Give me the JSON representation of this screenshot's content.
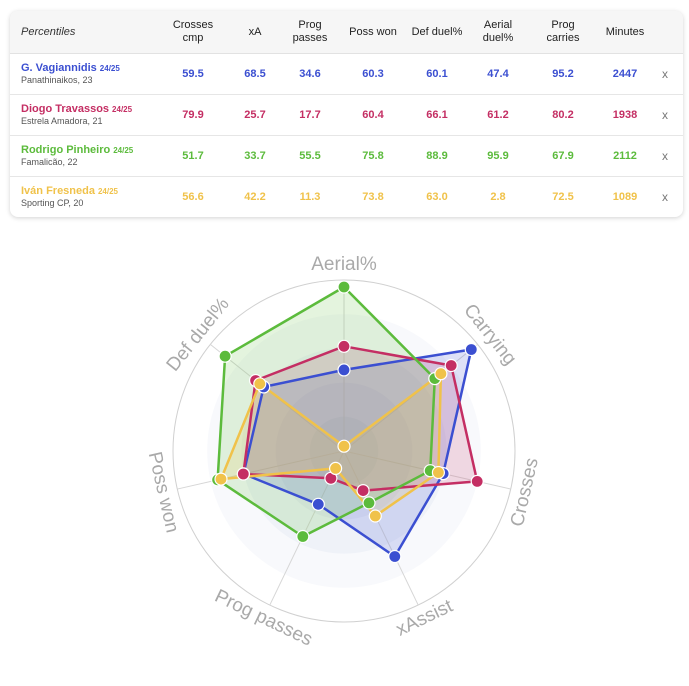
{
  "table": {
    "header_first": "Percentiles",
    "columns": [
      "Crosses\ncmp",
      "xA",
      "Prog\npasses",
      "Poss won",
      "Def duel%",
      "Aerial\nduel%",
      "Prog\ncarries",
      "Minutes"
    ],
    "remove_label": "x",
    "rows": [
      {
        "name": "G. Vagiannidis",
        "season": "24/25",
        "club": "Panathinaikos, 23",
        "color": "#3b4fd1",
        "values": [
          "59.5",
          "68.5",
          "34.6",
          "60.3",
          "60.1",
          "47.4",
          "95.2",
          "2447"
        ]
      },
      {
        "name": "Diogo Travassos",
        "season": "24/25",
        "club": "Estrela Amadora, 21",
        "color": "#c42e63",
        "values": [
          "79.9",
          "25.7",
          "17.7",
          "60.4",
          "66.1",
          "61.2",
          "80.2",
          "1938"
        ]
      },
      {
        "name": "Rodrigo Pinheiro",
        "season": "24/25",
        "club": "Famalicão, 22",
        "color": "#5cbb3c",
        "values": [
          "51.7",
          "33.7",
          "55.5",
          "75.8",
          "88.9",
          "95.9",
          "67.9",
          "2112"
        ]
      },
      {
        "name": "Iván Fresneda",
        "season": "24/25",
        "club": "Sporting CP, 20",
        "color": "#f0c24a",
        "values": [
          "56.6",
          "42.2",
          "11.3",
          "73.8",
          "63.0",
          "2.8",
          "72.5",
          "1089"
        ]
      }
    ]
  },
  "chart_data": {
    "type": "radar",
    "axes": [
      "Aerial%",
      "Carrying",
      "Crosses",
      "xAssist",
      "Prog passes",
      "Poss won",
      "Def duel%"
    ],
    "range": [
      0,
      100
    ],
    "series": [
      {
        "name": "G. Vagiannidis",
        "color": "#3b4fd1",
        "values": [
          47.4,
          95.2,
          59.5,
          68.5,
          34.6,
          60.3,
          60.1
        ]
      },
      {
        "name": "Diogo Travassos",
        "color": "#c42e63",
        "values": [
          61.2,
          80.2,
          79.9,
          25.7,
          17.7,
          60.4,
          66.1
        ]
      },
      {
        "name": "Rodrigo Pinheiro",
        "color": "#5cbb3c",
        "values": [
          95.9,
          67.9,
          51.7,
          33.7,
          55.5,
          75.8,
          88.9
        ]
      },
      {
        "name": "Iván Fresneda",
        "color": "#f0c24a",
        "values": [
          2.8,
          72.5,
          56.6,
          42.2,
          11.3,
          73.8,
          63.0
        ]
      }
    ]
  }
}
